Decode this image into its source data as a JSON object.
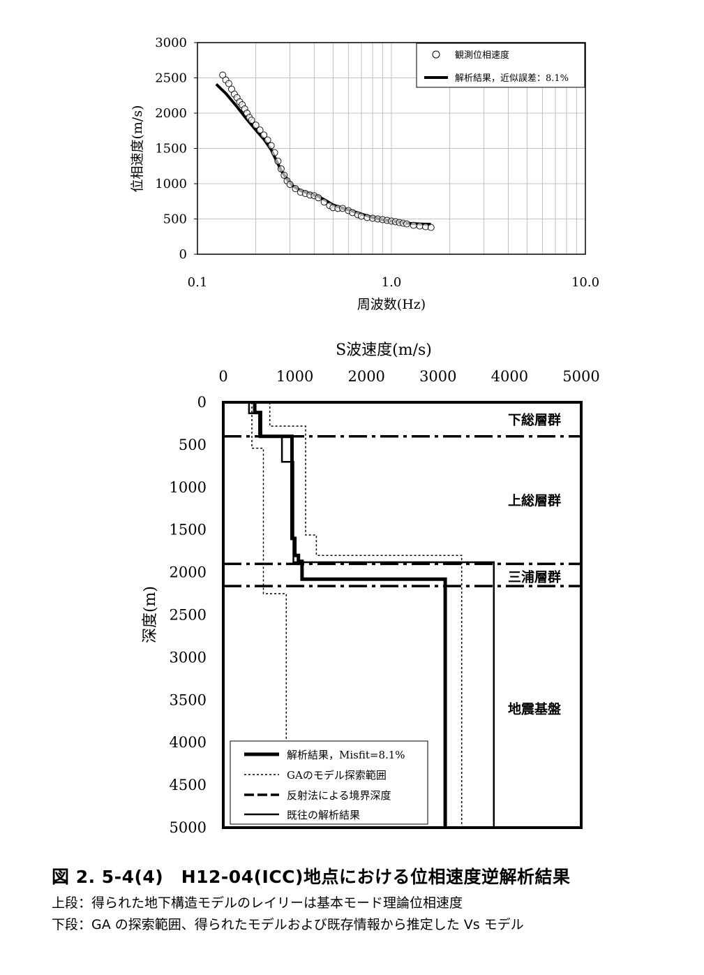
{
  "chart_data": [
    {
      "type": "scatter",
      "xlabel": "周波数(Hz)",
      "ylabel": "位相速度(m/s)",
      "xscale": "log",
      "xlim": [
        0.1,
        10.0
      ],
      "ylim": [
        0,
        3000
      ],
      "x_ticks": [
        "0.1",
        "1.0",
        "10.0"
      ],
      "y_ticks": [
        "0",
        "500",
        "1000",
        "1500",
        "2000",
        "2500",
        "3000"
      ],
      "grid": true,
      "legend_position": "top-right",
      "series": [
        {
          "name": "観測位相速度",
          "style": "open-circle",
          "points": [
            [
              0.135,
              2540
            ],
            [
              0.14,
              2470
            ],
            [
              0.145,
              2420
            ],
            [
              0.15,
              2340
            ],
            [
              0.155,
              2270
            ],
            [
              0.16,
              2220
            ],
            [
              0.165,
              2160
            ],
            [
              0.17,
              2120
            ],
            [
              0.175,
              2060
            ],
            [
              0.18,
              2000
            ],
            [
              0.185,
              1940
            ],
            [
              0.19,
              1900
            ],
            [
              0.2,
              1830
            ],
            [
              0.21,
              1760
            ],
            [
              0.22,
              1690
            ],
            [
              0.23,
              1620
            ],
            [
              0.24,
              1540
            ],
            [
              0.25,
              1440
            ],
            [
              0.26,
              1320
            ],
            [
              0.27,
              1210
            ],
            [
              0.28,
              1120
            ],
            [
              0.29,
              1040
            ],
            [
              0.3,
              990
            ],
            [
              0.32,
              930
            ],
            [
              0.34,
              880
            ],
            [
              0.36,
              860
            ],
            [
              0.38,
              840
            ],
            [
              0.4,
              830
            ],
            [
              0.42,
              800
            ],
            [
              0.45,
              740
            ],
            [
              0.48,
              690
            ],
            [
              0.5,
              660
            ],
            [
              0.53,
              650
            ],
            [
              0.56,
              650
            ],
            [
              0.6,
              620
            ],
            [
              0.63,
              590
            ],
            [
              0.67,
              560
            ],
            [
              0.7,
              540
            ],
            [
              0.75,
              520
            ],
            [
              0.8,
              510
            ],
            [
              0.85,
              500
            ],
            [
              0.9,
              490
            ],
            [
              0.95,
              480
            ],
            [
              1.0,
              470
            ],
            [
              1.05,
              460
            ],
            [
              1.1,
              450
            ],
            [
              1.15,
              440
            ],
            [
              1.2,
              430
            ],
            [
              1.3,
              410
            ],
            [
              1.4,
              400
            ],
            [
              1.5,
              390
            ],
            [
              1.6,
              380
            ]
          ]
        },
        {
          "name": "解析結果，近似誤差：8.1%",
          "style": "thick-line",
          "points": [
            [
              0.125,
              2410
            ],
            [
              0.14,
              2280
            ],
            [
              0.16,
              2090
            ],
            [
              0.18,
              1910
            ],
            [
              0.2,
              1760
            ],
            [
              0.22,
              1630
            ],
            [
              0.24,
              1480
            ],
            [
              0.255,
              1330
            ],
            [
              0.27,
              1190
            ],
            [
              0.29,
              1060
            ],
            [
              0.31,
              970
            ],
            [
              0.34,
              900
            ],
            [
              0.38,
              860
            ],
            [
              0.42,
              820
            ],
            [
              0.46,
              760
            ],
            [
              0.5,
              700
            ],
            [
              0.55,
              660
            ],
            [
              0.6,
              630
            ],
            [
              0.7,
              570
            ],
            [
              0.8,
              520
            ],
            [
              0.9,
              490
            ],
            [
              1.0,
              470
            ],
            [
              1.2,
              440
            ],
            [
              1.4,
              430
            ],
            [
              1.6,
              425
            ]
          ]
        }
      ]
    },
    {
      "type": "line",
      "xlabel": "S波速度(m/s)",
      "ylabel": "深度(m)",
      "xlim": [
        0,
        5000
      ],
      "ylim": [
        0,
        5000
      ],
      "y_inverted": true,
      "x_axis_position": "top",
      "x_ticks": [
        "0",
        "1000",
        "2000",
        "3000",
        "4000",
        "5000"
      ],
      "y_ticks": [
        "0",
        "500",
        "1000",
        "1500",
        "2000",
        "2500",
        "3000",
        "3500",
        "4000",
        "4500",
        "5000"
      ],
      "grid": false,
      "legend_position": "bottom-left",
      "layer_labels": [
        {
          "text": "下総層群",
          "depth": 200
        },
        {
          "text": "上総層群",
          "depth": 1150
        },
        {
          "text": "三浦層群",
          "depth": 2050
        },
        {
          "text": "地震基盤",
          "depth": 3600
        }
      ],
      "boundary_depths": [
        400,
        1900,
        2160
      ],
      "series": [
        {
          "name": "解析結果，Misfit=8.1%",
          "style": "thick-solid",
          "points": [
            [
              440,
              0
            ],
            [
              440,
              120
            ],
            [
              520,
              120
            ],
            [
              520,
              400
            ],
            [
              960,
              400
            ],
            [
              960,
              1600
            ],
            [
              1000,
              1600
            ],
            [
              1000,
              1800
            ],
            [
              1050,
              1800
            ],
            [
              1050,
              1870
            ],
            [
              1100,
              1870
            ],
            [
              1100,
              2080
            ],
            [
              3100,
              2080
            ],
            [
              3100,
              5000
            ]
          ]
        },
        {
          "name": "GAのモデル探索範囲",
          "style": "dotted",
          "points": [
            [
              400,
              0
            ],
            [
              400,
              540
            ],
            [
              560,
              540
            ],
            [
              560,
              2250
            ],
            [
              880,
              2250
            ],
            [
              880,
              4800
            ]
          ]
        },
        {
          "name": "GAのモデル探索範囲",
          "style": "dotted",
          "points": [
            [
              650,
              0
            ],
            [
              650,
              280
            ],
            [
              1150,
              280
            ],
            [
              1150,
              1560
            ],
            [
              1300,
              1560
            ],
            [
              1300,
              1800
            ],
            [
              3330,
              1800
            ],
            [
              3330,
              5000
            ]
          ]
        },
        {
          "name": "反射法による境界深度",
          "style": "dash-dot"
        },
        {
          "name": "既往の解析結果",
          "style": "solid",
          "points": [
            [
              360,
              0
            ],
            [
              360,
              130
            ],
            [
              500,
              130
            ],
            [
              500,
              400
            ],
            [
              820,
              400
            ],
            [
              820,
              700
            ],
            [
              980,
              700
            ],
            [
              980,
              1880
            ],
            [
              3780,
              1880
            ],
            [
              3780,
              5000
            ]
          ]
        }
      ]
    }
  ],
  "caption": {
    "title": "図 2. 5-4(4)　H12-04(ICC)地点における位相速度逆解析結果",
    "line1": "上段：得られた地下構造モデルのレイリーは基本モード理論位相速度",
    "line2": "下段：GA の探索範囲、得られたモデルおよび既存情報から推定した Vs モデル"
  }
}
